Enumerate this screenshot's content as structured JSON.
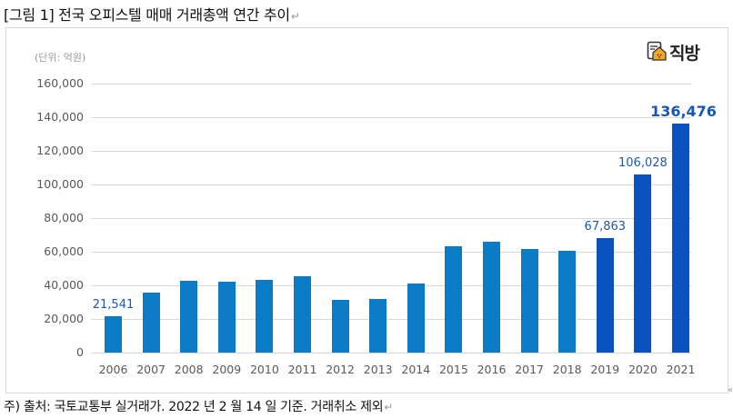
{
  "figure": {
    "title": "[그림 1] 전국 오피스텔 매매 거래총액 연간 추이",
    "return_mark": "↵",
    "note": "주) 출처: 국토교통부 실거래가. 2022 년 2 월 14 일 기준. 거래취소 제외",
    "unit_label": "(단위: 억원)",
    "logo_text": "직방",
    "logo_icon": "house-icon"
  },
  "colors": {
    "bar_default": "#0a7bc4",
    "bar_highlight": "#0a52c0",
    "label_color": "#1f5aa8",
    "grid": "#d9d9d9"
  },
  "chart_data": {
    "type": "bar",
    "title": "전국 오피스텔 매매 거래총액 연간 추이",
    "xlabel": "",
    "ylabel": "(단위: 억원)",
    "ylim": [
      0,
      160000
    ],
    "yticks": [
      "0",
      "20,000",
      "40,000",
      "60,000",
      "80,000",
      "100,000",
      "120,000",
      "140,000",
      "160,000"
    ],
    "grid": true,
    "legend": null,
    "categories": [
      "2006",
      "2007",
      "2008",
      "2009",
      "2010",
      "2011",
      "2012",
      "2013",
      "2014",
      "2015",
      "2016",
      "2017",
      "2018",
      "2019",
      "2020",
      "2021"
    ],
    "values": [
      21541,
      35800,
      42700,
      42200,
      43200,
      45200,
      31200,
      31700,
      40900,
      63000,
      66100,
      61800,
      60500,
      67863,
      106028,
      136476
    ],
    "highlighted": [
      false,
      false,
      false,
      false,
      false,
      false,
      false,
      false,
      false,
      false,
      false,
      false,
      false,
      true,
      true,
      true
    ],
    "data_labels": {
      "2006": "21,541",
      "2019": "67,863",
      "2020": "106,028",
      "2021": "136,476"
    }
  }
}
